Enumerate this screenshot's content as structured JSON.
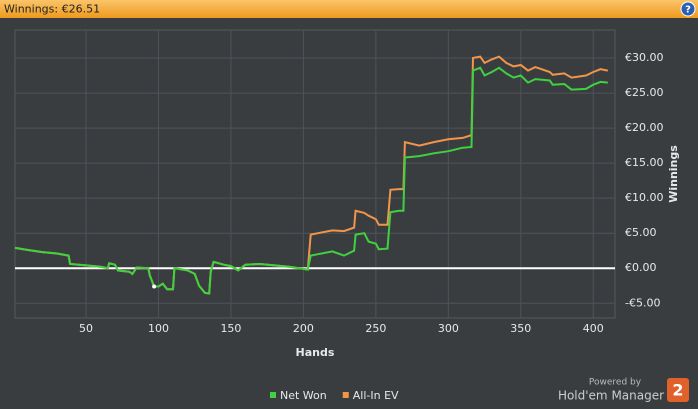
{
  "chart_data": {
    "type": "line",
    "title": "Winnings: €26.51",
    "help_icon": "?",
    "x_label": "Hands",
    "y_label": "Winnings",
    "x": [
      1,
      10,
      20,
      30,
      38,
      39,
      50,
      60,
      65,
      66,
      70,
      72,
      80,
      82,
      85,
      93,
      94,
      97,
      100,
      103,
      106,
      110,
      111,
      120,
      125,
      128,
      132,
      135,
      136,
      138,
      140,
      145,
      150,
      155,
      160,
      170,
      180,
      190,
      197,
      203,
      205,
      210,
      220,
      228,
      235,
      236,
      242,
      245,
      250,
      252,
      258,
      260,
      266,
      269,
      270,
      280,
      290,
      300,
      310,
      316,
      317,
      322,
      325,
      330,
      335,
      340,
      345,
      350,
      355,
      360,
      370,
      372,
      380,
      385,
      395,
      400,
      405,
      410
    ],
    "series": [
      {
        "name": "Net Won",
        "color": "#3fd13f",
        "values": [
          2.9,
          2.6,
          2.3,
          2.1,
          1.8,
          0.6,
          0.4,
          0.2,
          0.0,
          0.7,
          0.5,
          -0.3,
          -0.5,
          -0.8,
          0.1,
          0.0,
          -1.0,
          -2.6,
          -2.6,
          -2.2,
          -3.0,
          -3.0,
          0.0,
          -0.3,
          -0.8,
          -2.5,
          -3.5,
          -3.6,
          -0.5,
          0.9,
          0.8,
          0.5,
          0.3,
          -0.3,
          0.5,
          0.6,
          0.4,
          0.2,
          0.0,
          -0.2,
          1.8,
          2.0,
          2.4,
          1.8,
          2.5,
          4.8,
          5.0,
          3.8,
          3.5,
          2.7,
          2.8,
          8.0,
          8.2,
          8.2,
          15.8,
          16.0,
          16.4,
          16.7,
          17.2,
          17.3,
          28.2,
          28.6,
          27.5,
          28.0,
          28.6,
          27.8,
          27.2,
          27.5,
          26.5,
          27.0,
          26.8,
          26.2,
          26.3,
          25.5,
          25.6,
          26.2,
          26.6,
          26.5
        ]
      },
      {
        "name": "All-In EV",
        "color": "#f0954a",
        "values": [
          2.9,
          2.6,
          2.3,
          2.1,
          1.8,
          0.6,
          0.4,
          0.2,
          0.0,
          0.7,
          0.5,
          -0.3,
          -0.5,
          -0.8,
          0.1,
          0.0,
          -1.0,
          -2.6,
          -2.6,
          -2.2,
          -3.0,
          -3.0,
          0.0,
          -0.3,
          -0.8,
          -2.5,
          -3.5,
          -3.6,
          -0.5,
          0.9,
          0.8,
          0.5,
          0.3,
          -0.3,
          0.5,
          0.6,
          0.4,
          0.2,
          0.0,
          -0.2,
          4.8,
          5.0,
          5.4,
          5.3,
          5.8,
          8.2,
          7.9,
          7.5,
          7.0,
          6.2,
          6.2,
          11.2,
          11.3,
          11.3,
          18.0,
          17.5,
          18.0,
          18.4,
          18.6,
          19.0,
          30.0,
          30.2,
          29.3,
          29.8,
          30.2,
          29.3,
          28.8,
          29.0,
          28.2,
          28.7,
          28.0,
          27.6,
          27.8,
          27.2,
          27.5,
          28.0,
          28.4,
          28.2
        ]
      }
    ],
    "xlim": [
      1,
      415
    ],
    "xticks": [
      50,
      100,
      150,
      200,
      250,
      300,
      350,
      400
    ],
    "ylim": [
      -7.1,
      34
    ],
    "yticks": [
      {
        "value": -5,
        "label": "-€5.00"
      },
      {
        "value": 0,
        "label": "€0.00"
      },
      {
        "value": 5,
        "label": "€5.00"
      },
      {
        "value": 10,
        "label": "€10.00"
      },
      {
        "value": 15,
        "label": "€15.00"
      },
      {
        "value": 20,
        "label": "€20.00"
      },
      {
        "value": 25,
        "label": "€25.00"
      },
      {
        "value": 30,
        "label": "€30.00"
      }
    ],
    "grid": true,
    "legend": "bottom"
  },
  "footer": {
    "powered_by": "Powered by",
    "product": "Hold'em Manager",
    "logo": "2"
  }
}
